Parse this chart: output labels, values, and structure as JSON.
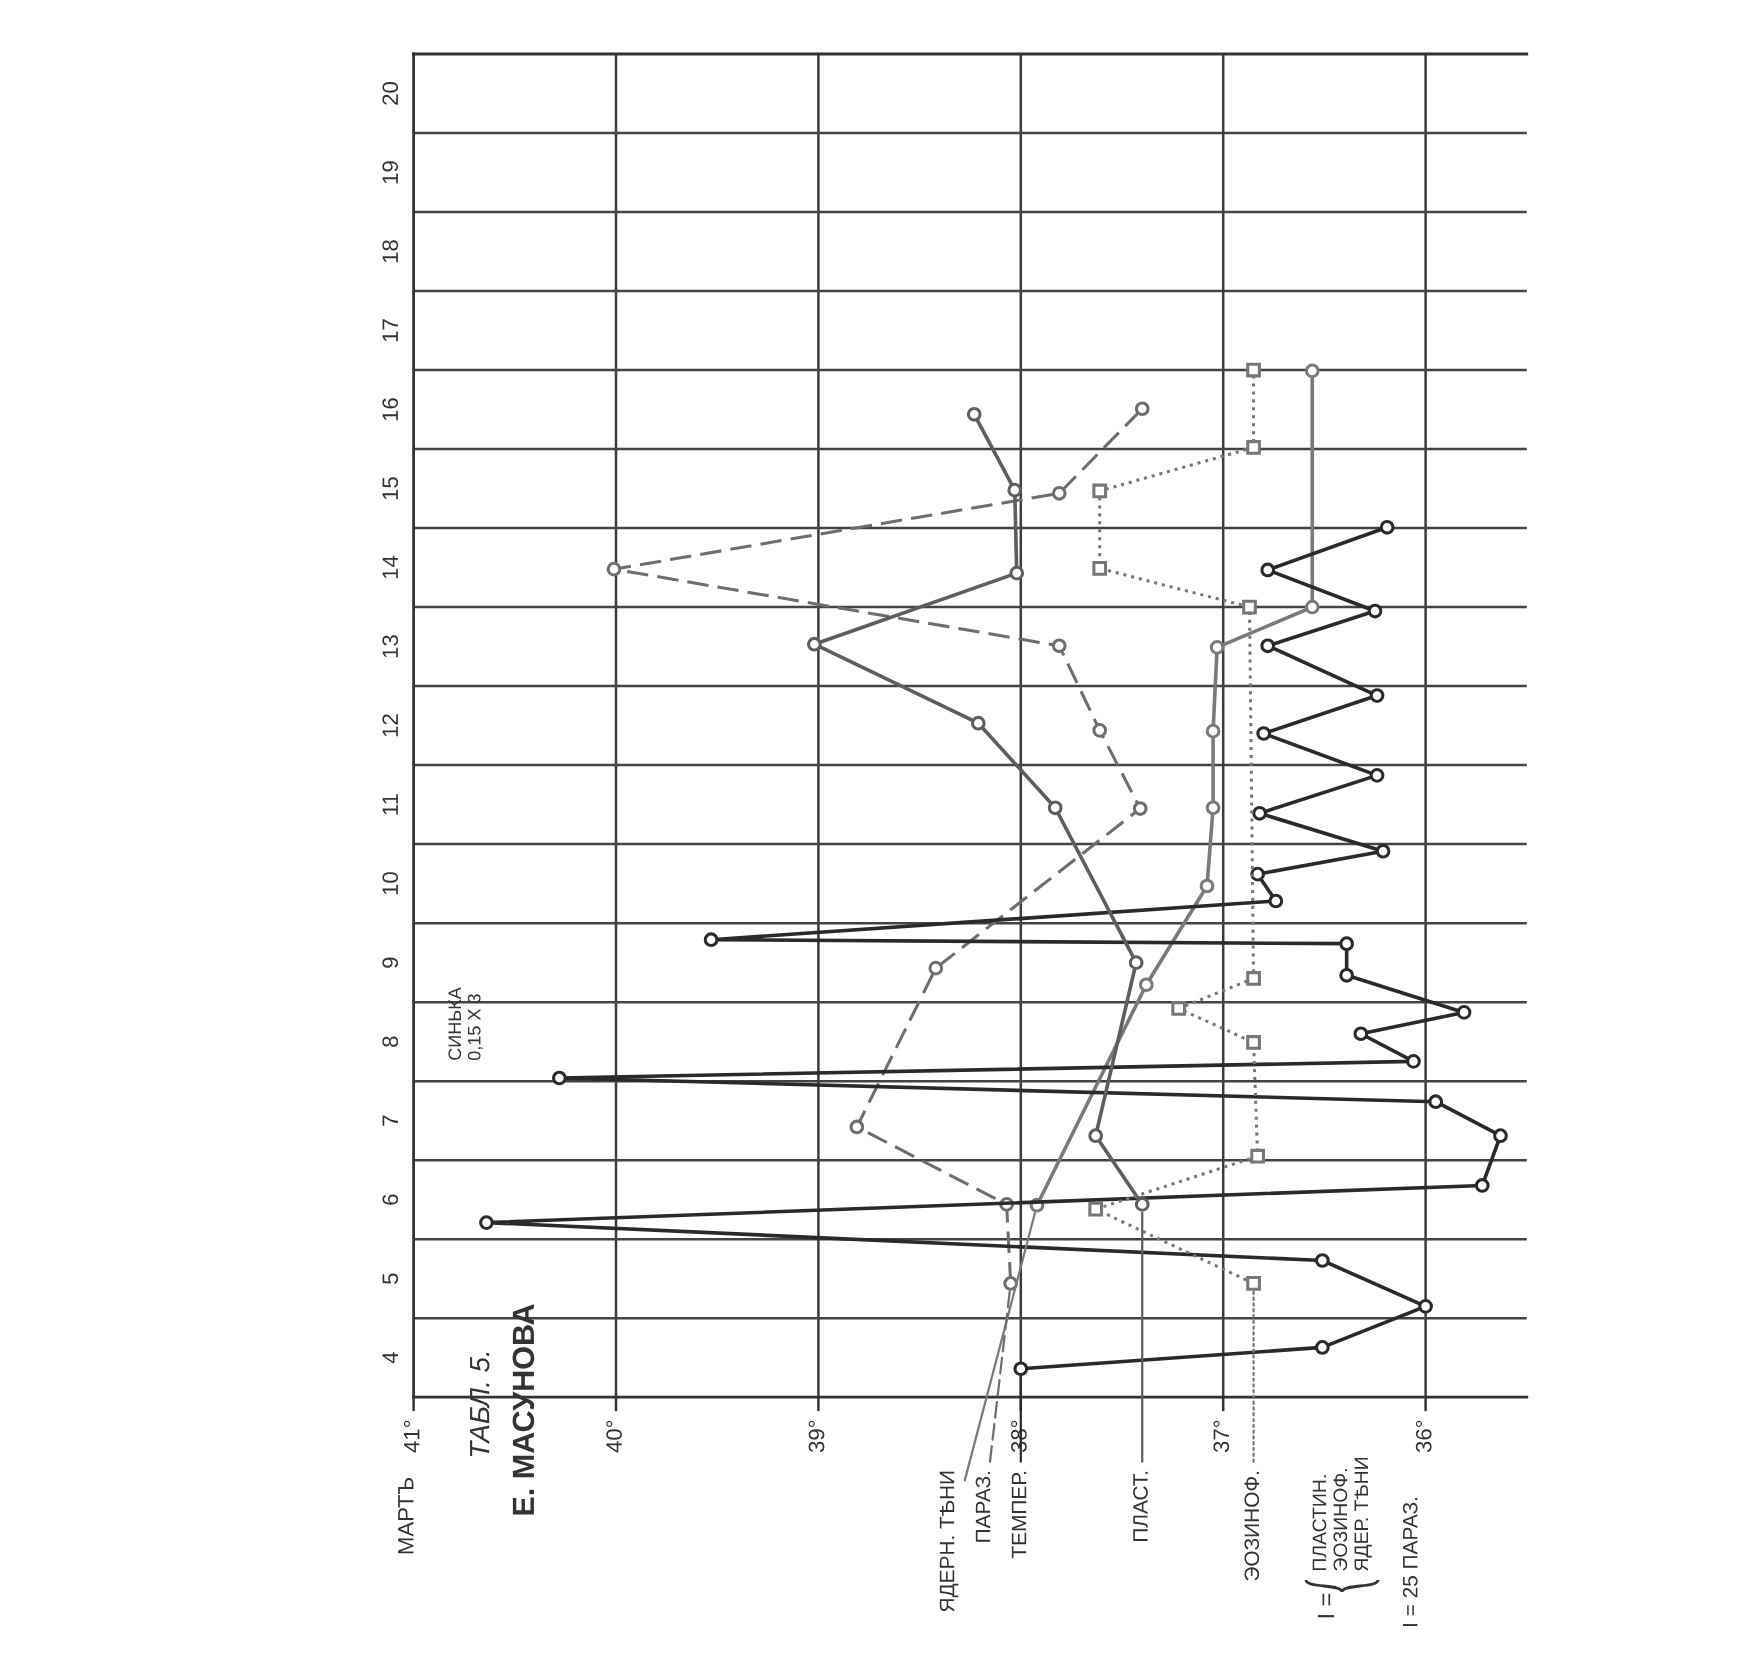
{
  "chart_data": {
    "type": "line",
    "orientation": "horizontal",
    "title": "ТАБЛ. 5.",
    "subtitle": "Е. МАСУНОВА",
    "ylabel": "МАРТЪ",
    "xlim": [
      41,
      35.5
    ],
    "xticks": [
      {
        "value": 41,
        "label": "41°"
      },
      {
        "value": 40,
        "label": "40°"
      },
      {
        "value": 39,
        "label": "39°"
      },
      {
        "value": 38,
        "label": "38°"
      },
      {
        "value": 37,
        "label": "37°"
      },
      {
        "value": 36,
        "label": "36°"
      }
    ],
    "ylim": [
      3.5,
      20.5
    ],
    "yticks": [
      4,
      5,
      6,
      7,
      8,
      9,
      10,
      11,
      12,
      13,
      14,
      15,
      16,
      17,
      18,
      19,
      20
    ],
    "grid": "x",
    "ref_lines": [
      {
        "axis": "y",
        "value": 4.5,
        "color": "#444444"
      },
      {
        "axis": "y",
        "value": 5.5,
        "color": "#444444"
      },
      {
        "axis": "y",
        "value": 6.5,
        "color": "#444444"
      },
      {
        "axis": "y",
        "value": 7.5,
        "color": "#444444"
      },
      {
        "axis": "y",
        "value": 8.5,
        "color": "#444444"
      },
      {
        "axis": "y",
        "value": 9.5,
        "color": "#444444"
      },
      {
        "axis": "y",
        "value": 10.5,
        "color": "#444444"
      },
      {
        "axis": "y",
        "value": 11.5,
        "color": "#444444"
      },
      {
        "axis": "y",
        "value": 12.5,
        "color": "#444444"
      },
      {
        "axis": "y",
        "value": 13.5,
        "color": "#444444"
      },
      {
        "axis": "y",
        "value": 14.5,
        "color": "#444444"
      },
      {
        "axis": "y",
        "value": 15.5,
        "color": "#444444"
      },
      {
        "axis": "y",
        "value": 16.5,
        "color": "#444444"
      },
      {
        "axis": "y",
        "value": 17.5,
        "color": "#444444"
      },
      {
        "axis": "y",
        "value": 18.5,
        "color": "#444444"
      },
      {
        "axis": "y",
        "value": 19.5,
        "color": "#444444"
      }
    ],
    "series": [
      {
        "name": "ЯДЕРН. ТѢНИ",
        "color": "#7a7a7a",
        "line_style": "solid",
        "marker": "circle",
        "x": [
          5.93,
          8.72,
          9.97,
          10.96,
          11.93,
          12.99,
          13.5,
          16.49
        ],
        "values": [
          37.92,
          37.38,
          37.08,
          37.05,
          37.05,
          37.03,
          36.56,
          36.56
        ]
      },
      {
        "name": "ПАРАЗ.",
        "color": "#6e6e6e",
        "line_style": "dashed",
        "marker": "circle",
        "x": [
          4.94,
          5.94,
          6.92,
          8.93,
          10.95,
          11.94,
          13.01,
          13.98,
          14.94,
          16.01
        ],
        "values": [
          38.05,
          38.07,
          38.81,
          38.42,
          37.41,
          37.61,
          37.81,
          40.01,
          37.81,
          37.4
        ]
      },
      {
        "name": "ТЕМПЕР.",
        "color": "#2a2a2a",
        "line_style": "solid",
        "marker": "circle",
        "x": [
          3.86,
          4.13,
          4.65,
          5.23,
          5.71,
          6.18,
          6.81,
          7.24,
          7.54,
          7.75,
          8.1,
          8.37,
          8.84,
          9.24,
          9.29,
          9.78,
          10.12,
          10.41,
          10.89,
          11.37,
          11.9,
          12.38,
          13.01,
          13.45,
          13.97,
          14.51
        ],
        "values": [
          38.0,
          36.51,
          36.0,
          36.51,
          40.64,
          35.72,
          35.63,
          35.95,
          40.28,
          36.06,
          36.32,
          35.81,
          36.39,
          36.39,
          39.53,
          36.74,
          36.83,
          36.21,
          36.82,
          36.24,
          36.8,
          36.24,
          36.78,
          36.25,
          36.78,
          36.19
        ]
      },
      {
        "name": "ПЛАСТ.",
        "color": "#5e5e5e",
        "line_style": "solid",
        "marker": "circle",
        "x": [
          5.94,
          6.81,
          9.0,
          10.96,
          12.03,
          13.03,
          13.93,
          14.98,
          15.94
        ],
        "values": [
          37.4,
          37.63,
          37.43,
          37.83,
          38.21,
          39.02,
          38.02,
          38.03,
          38.23
        ]
      },
      {
        "name": "ЭОЗИНОФ.",
        "color": "#777777",
        "line_style": "dotted",
        "marker": "square",
        "x": [
          4.94,
          5.88,
          6.55,
          7.99,
          8.42,
          8.8,
          13.5,
          13.99,
          14.97,
          15.52,
          16.5
        ],
        "values": [
          36.85,
          37.63,
          36.83,
          36.85,
          37.22,
          36.85,
          36.87,
          37.61,
          37.61,
          36.85,
          36.85
        ]
      }
    ],
    "annotations": [
      "СИНЬКА\n0,15 X 3",
      "I =",
      "ПЛАСТИН.\nЭОЗИНОФ.\nЯДЕР. ТѢНИ",
      "I = 25 ПАРАЗ."
    ]
  }
}
